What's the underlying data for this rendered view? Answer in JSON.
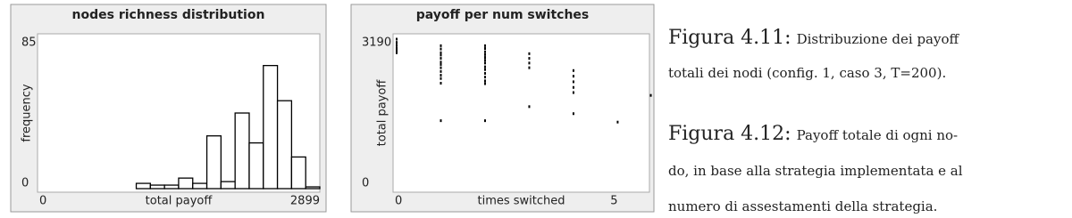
{
  "chart_data": [
    {
      "type": "histogram",
      "title": "nodes richness distribution",
      "x_label": "total payoff",
      "y_label": "frequency",
      "bins": [
        1014,
        1159,
        1304,
        1449,
        1594,
        1739,
        1884,
        2029,
        2174,
        2319,
        2464,
        2609,
        2754,
        2899
      ],
      "values": [
        3,
        2,
        2,
        6,
        3,
        30,
        4,
        43,
        26,
        70,
        50,
        18,
        1
      ],
      "color": "#000000",
      "xlim": [
        0,
        2899
      ],
      "xticks": [
        0,
        2899
      ],
      "ylim": [
        0,
        85
      ],
      "yticks": [
        0,
        85
      ]
    },
    {
      "type": "scatter",
      "title": "payoff per num switches",
      "x_label": "times switched",
      "y_label": "total payoff",
      "x": [
        0,
        0,
        0,
        0,
        0,
        0,
        1,
        1,
        1,
        1,
        1,
        1,
        1,
        1,
        1,
        1,
        1,
        1,
        1,
        2,
        2,
        2,
        2,
        2,
        2,
        2,
        2,
        2,
        2,
        2,
        2,
        2,
        2,
        3,
        3,
        3,
        3,
        3,
        4,
        4,
        4,
        4,
        4,
        4,
        5,
        5.75
      ],
      "values": [
        3190,
        3120,
        3060,
        3000,
        2950,
        2900,
        3050,
        2980,
        2900,
        2850,
        2780,
        2700,
        2650,
        2580,
        2500,
        2420,
        2350,
        2250,
        1450,
        3050,
        2990,
        2920,
        2860,
        2800,
        2740,
        2680,
        2600,
        2540,
        2460,
        2380,
        2300,
        2240,
        1450,
        2880,
        2780,
        2680,
        2580,
        1750,
        2520,
        2400,
        2280,
        2160,
        2050,
        1600,
        1420,
        1990
      ],
      "color": "#000000",
      "xlim": [
        0,
        5.8
      ],
      "xticks": [
        0,
        5
      ],
      "ylim": [
        0,
        3190
      ],
      "yticks": [
        0,
        3190
      ]
    }
  ],
  "captions": [
    {
      "label": "Figura 4.11:",
      "lines": [
        "Distribuzione dei payoff",
        "totali dei nodi (config. 1, caso 3, T=200)."
      ]
    },
    {
      "label": "Figura 4.12:",
      "lines": [
        "Payoff totale di ogni no-",
        "do, in base alla strategia implementata e al",
        "numero di assestamenti della strategia."
      ]
    }
  ]
}
